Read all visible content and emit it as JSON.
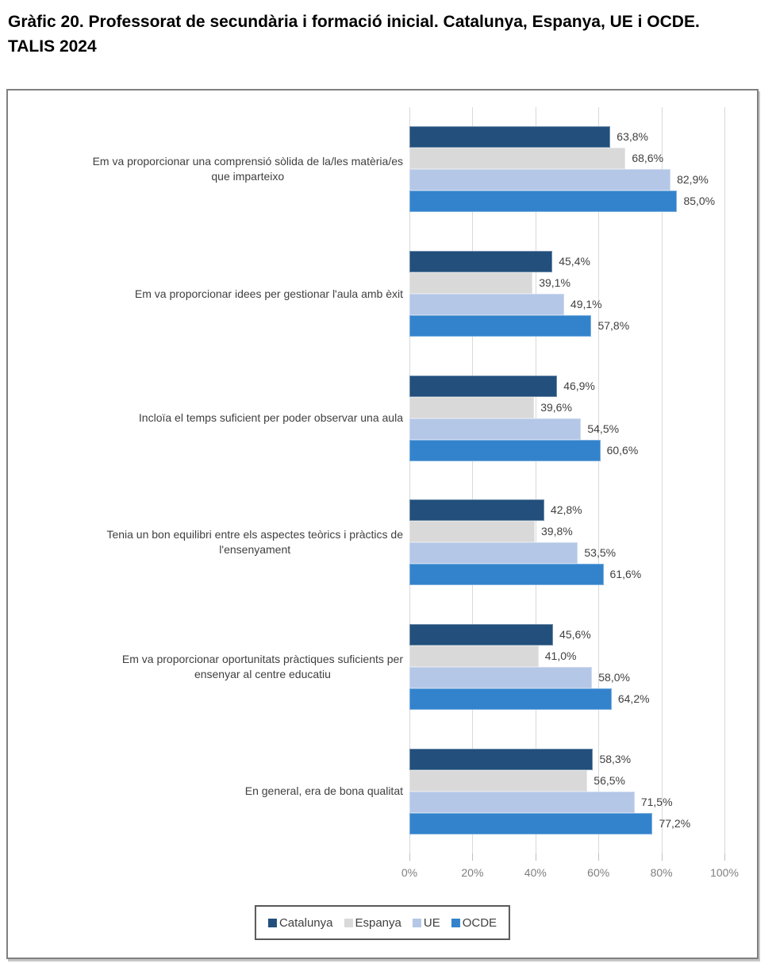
{
  "page": {
    "title": "Gràfic 20. Professorat de secundària i formació inicial. Catalunya, Espanya, UE i OCDE.\nTALIS 2024"
  },
  "chart_data": {
    "type": "bar",
    "orientation": "horizontal",
    "title": "Gràfic 20. Professorat de secundària i formació inicial. Catalunya, Espanya, UE i OCDE. TALIS 2024",
    "categories": [
      "Em va proporcionar una comprensió sòlida de la/les matèria/es que imparteixo",
      "Em va proporcionar idees per gestionar l'aula amb èxit",
      "Incloïa el temps suficient per poder observar una aula",
      "Tenia un bon equilibri entre els aspectes teòrics i pràctics de l'ensenyament",
      "Em va proporcionar oportunitats pràctiques suficients per ensenyar al centre educatiu",
      "En general, era de bona qualitat"
    ],
    "category_display": [
      "Em va proporcionar una comprensió sòlida de la/les matèria/es\nque imparteixo",
      "Em va proporcionar idees per gestionar l'aula amb èxit",
      "Incloïa el temps suficient per poder observar una aula",
      "Tenia un bon equilibri entre els aspectes teòrics i pràctics de\nl'ensenyament",
      "Em va proporcionar oportunitats pràctiques suficients per\nensenyar al centre educatiu",
      "En general, era de bona qualitat"
    ],
    "series": [
      {
        "name": "Catalunya",
        "color": "#224f7c",
        "values": [
          63.8,
          45.4,
          46.9,
          42.8,
          45.6,
          58.3
        ],
        "labels": [
          "63,8%",
          "45,4%",
          "46,9%",
          "42,8%",
          "45,6%",
          "58,3%"
        ]
      },
      {
        "name": "Espanya",
        "color": "#d9d9d9",
        "values": [
          68.6,
          39.1,
          39.6,
          39.8,
          41.0,
          56.5
        ],
        "labels": [
          "68,6%",
          "39,1%",
          "39,6%",
          "39,8%",
          "41,0%",
          "56,5%"
        ]
      },
      {
        "name": "UE",
        "color": "#b4c7e7",
        "values": [
          82.9,
          49.1,
          54.5,
          53.5,
          58.0,
          71.5
        ],
        "labels": [
          "82,9%",
          "49,1%",
          "54,5%",
          "53,5%",
          "58,0%",
          "71,5%"
        ]
      },
      {
        "name": "OCDE",
        "color": "#3383cc",
        "values": [
          85.0,
          57.8,
          60.6,
          61.6,
          64.2,
          77.2
        ],
        "labels": [
          "85,0%",
          "57,8%",
          "60,6%",
          "61,6%",
          "64,2%",
          "77,2%"
        ]
      }
    ],
    "x_ticks": [
      "0%",
      "20%",
      "40%",
      "60%",
      "80%",
      "100%"
    ],
    "xlim": [
      0,
      100
    ],
    "grid": "vertical",
    "legend_position": "bottom",
    "value_labels": "outside-end, comma decimal"
  },
  "colors": {
    "gridline": "#d9d9d9",
    "tick": "#bfbfbf",
    "axis_text": "#7f7f7f",
    "value_text": "#404040",
    "category_text": "#404040",
    "frame_border": "#808080",
    "legend_border": "#595959",
    "title_text": "#000000"
  }
}
